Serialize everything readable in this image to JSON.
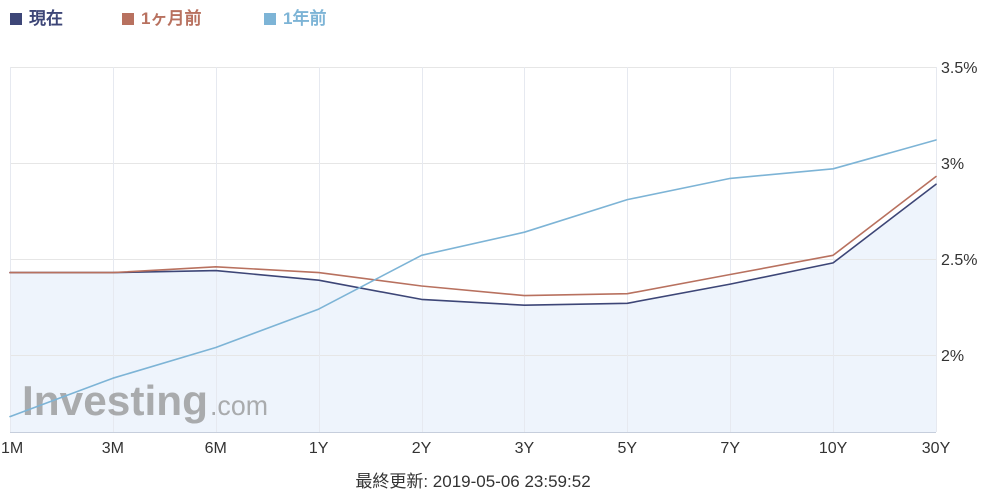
{
  "chart_data": {
    "type": "line",
    "categories": [
      "1M",
      "3M",
      "6M",
      "1Y",
      "2Y",
      "3Y",
      "5Y",
      "7Y",
      "10Y",
      "30Y"
    ],
    "series": [
      {
        "name": "現在",
        "values": [
          2.43,
          2.43,
          2.44,
          2.39,
          2.29,
          2.26,
          2.27,
          2.37,
          2.48,
          2.89
        ],
        "color": "#3d4677",
        "area_fill": "#eef4fc"
      },
      {
        "name": "1ヶ月前",
        "values": [
          2.43,
          2.43,
          2.46,
          2.43,
          2.36,
          2.31,
          2.32,
          2.42,
          2.52,
          2.93
        ],
        "color": "#b8715f"
      },
      {
        "name": "1年前",
        "values": [
          1.68,
          1.88,
          2.04,
          2.24,
          2.52,
          2.64,
          2.81,
          2.92,
          2.97,
          3.12
        ],
        "color": "#7db4d6"
      }
    ],
    "y_ticks": [
      {
        "value": 2,
        "label": "2%"
      },
      {
        "value": 2.5,
        "label": "2.5%"
      },
      {
        "value": 3,
        "label": "3%"
      },
      {
        "value": 3.5,
        "label": "3.5%"
      }
    ],
    "ylim": [
      1.6,
      3.5
    ],
    "y_axis_side": "right",
    "grid": true,
    "legend_position": "top-left"
  },
  "watermark": {
    "brand": "Investing",
    "suffix": ".com"
  },
  "footer": {
    "last_updated": "最終更新: 2019-05-06 23:59:52"
  }
}
